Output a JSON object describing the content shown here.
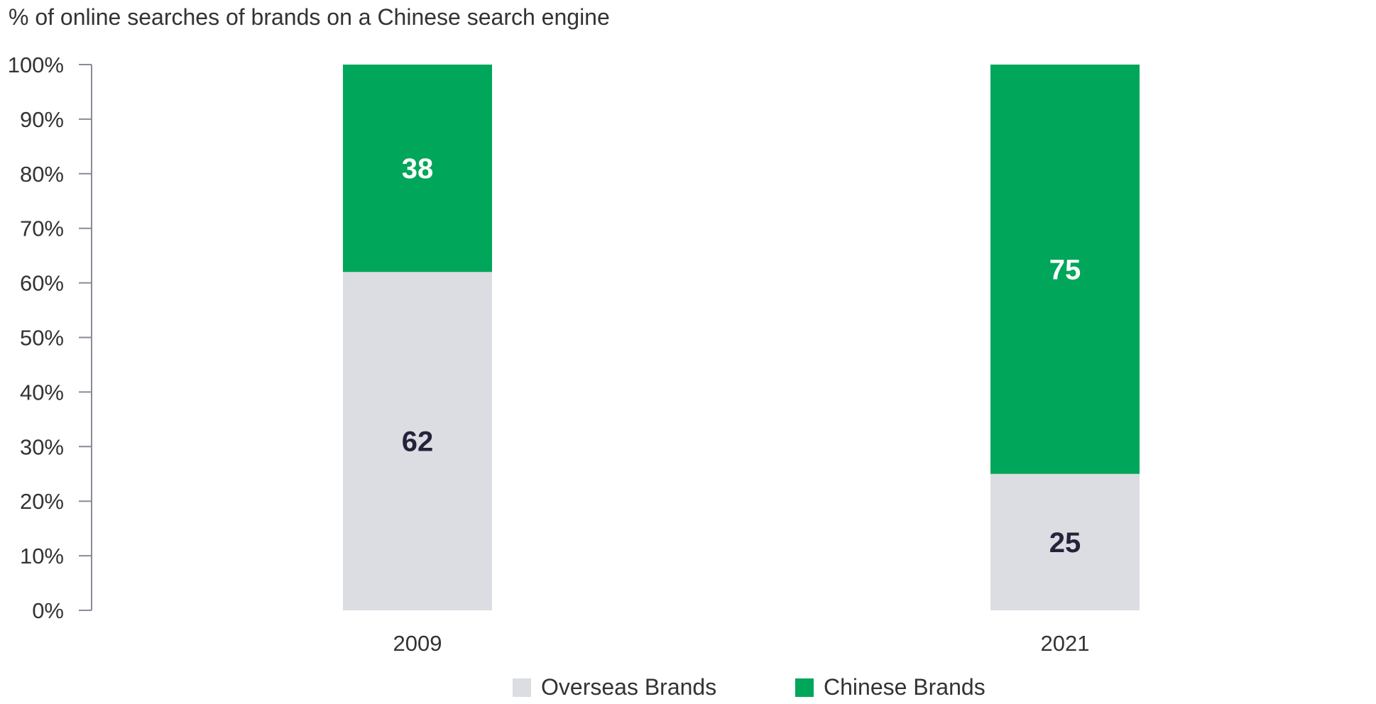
{
  "chart_data": {
    "type": "bar",
    "stacked": true,
    "title": "",
    "ylabel": "% of online searches of brands on a Chinese search engine",
    "xlabel": "",
    "categories": [
      "2009",
      "2021"
    ],
    "series": [
      {
        "name": "Overseas Brands",
        "values": [
          62,
          25
        ],
        "color": "#dcdde2",
        "label_color": "#23233a"
      },
      {
        "name": "Chinese Brands",
        "values": [
          38,
          75
        ],
        "color": "#00a65a",
        "label_color": "#ffffff"
      }
    ],
    "ylim": [
      0,
      100
    ],
    "yticks": [
      "0%",
      "10%",
      "20%",
      "30%",
      "40%",
      "50%",
      "60%",
      "70%",
      "80%",
      "90%",
      "100%"
    ],
    "grid": false,
    "legend_position": "bottom-center"
  }
}
